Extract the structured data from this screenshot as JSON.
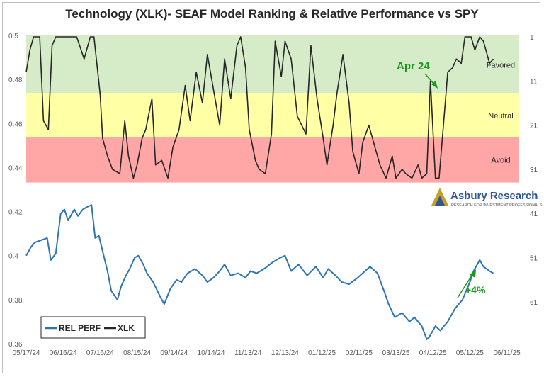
{
  "chart_data": {
    "type": "line",
    "title": "Technology (XLK)- SEAF Model Ranking & Relative Performance vs SPY",
    "x_tick_labels": [
      "05/17/24",
      "06/16/24",
      "07/16/24",
      "08/15/24",
      "09/14/24",
      "10/14/24",
      "11/13/24",
      "12/13/24",
      "01/12/25",
      "02/11/25",
      "03/13/25",
      "04/12/25",
      "05/12/25",
      "06/11/25"
    ],
    "xlim": [
      "05/17/24",
      "06/21/25"
    ],
    "left_axis": {
      "ylim": [
        0.36,
        0.5
      ],
      "ticks": [
        "0.5",
        "0.48",
        "0.46",
        "0.44",
        "0.42",
        "0.4",
        "0.38",
        "0.36"
      ]
    },
    "right_axis": {
      "reversed": true,
      "ticks": [
        "1",
        "11",
        "21",
        "31",
        "41",
        "51",
        "61"
      ]
    },
    "zones": [
      {
        "label": "Favored",
        "rank_range": [
          1,
          14
        ],
        "color": "#d6ecc9"
      },
      {
        "label": "Neutral",
        "rank_range": [
          14,
          24
        ],
        "color": "#ffffa6"
      },
      {
        "label": "Avoid",
        "rank_range": [
          24,
          34
        ],
        "color": "#ffa6a6"
      }
    ],
    "series": [
      {
        "name": "REL PERF",
        "axis": "left",
        "color": "#2e75b6",
        "x": [
          "05/17/24",
          "05/21/24",
          "05/24/24",
          "05/29/24",
          "06/03/24",
          "06/06/24",
          "06/10/24",
          "06/12/24",
          "06/14/24",
          "06/17/24",
          "06/20/24",
          "06/25/24",
          "06/28/24",
          "07/02/24",
          "07/05/24",
          "07/09/24",
          "07/12/24",
          "07/15/24",
          "07/18/24",
          "07/22/24",
          "07/25/24",
          "07/30/24",
          "08/02/24",
          "08/06/24",
          "08/09/24",
          "08/13/24",
          "08/16/24",
          "08/20/24",
          "08/23/24",
          "08/28/24",
          "09/03/24",
          "09/06/24",
          "09/11/24",
          "09/16/24",
          "09/20/24",
          "09/25/24",
          "10/01/24",
          "10/07/24",
          "10/11/24",
          "10/16/24",
          "10/21/24",
          "10/25/24",
          "10/30/24",
          "11/05/24",
          "11/11/24",
          "11/15/24",
          "11/20/24",
          "11/26/24",
          "12/03/24",
          "12/09/24",
          "12/13/24",
          "12/18/24",
          "12/24/24",
          "12/31/24",
          "01/07/25",
          "01/13/25",
          "01/17/25",
          "01/23/25",
          "01/28/25",
          "02/03/25",
          "02/10/25",
          "02/14/25",
          "02/20/25",
          "02/26/25",
          "03/04/25",
          "03/07/25",
          "03/12/25",
          "03/18/25",
          "03/24/25",
          "03/28/25",
          "04/03/25",
          "04/07/25",
          "04/09/25",
          "04/14/25",
          "04/18/25",
          "04/24/25",
          "04/30/25",
          "05/06/25",
          "05/12/25",
          "05/15/25",
          "05/20/25",
          "05/23/25",
          "05/28/25",
          "05/31/25"
        ],
        "values": [
          0.4,
          0.404,
          0.406,
          0.407,
          0.408,
          0.398,
          0.401,
          0.41,
          0.419,
          0.421,
          0.416,
          0.421,
          0.418,
          0.421,
          0.422,
          0.423,
          0.408,
          0.409,
          0.402,
          0.393,
          0.384,
          0.38,
          0.386,
          0.391,
          0.394,
          0.399,
          0.4,
          0.396,
          0.392,
          0.388,
          0.381,
          0.378,
          0.385,
          0.389,
          0.388,
          0.392,
          0.394,
          0.391,
          0.388,
          0.39,
          0.393,
          0.396,
          0.391,
          0.392,
          0.39,
          0.393,
          0.392,
          0.394,
          0.397,
          0.399,
          0.4,
          0.393,
          0.396,
          0.391,
          0.395,
          0.39,
          0.394,
          0.391,
          0.388,
          0.387,
          0.39,
          0.392,
          0.395,
          0.392,
          0.383,
          0.378,
          0.372,
          0.374,
          0.37,
          0.372,
          0.368,
          0.362,
          0.363,
          0.368,
          0.366,
          0.37,
          0.376,
          0.38,
          0.388,
          0.393,
          0.398,
          0.395,
          0.393,
          0.392
        ]
      },
      {
        "name": "XLK",
        "axis": "right",
        "color": "#262626",
        "x": [
          "05/17/24",
          "05/20/24",
          "05/23/24",
          "05/28/24",
          "05/31/24",
          "06/04/24",
          "06/07/24",
          "06/10/24",
          "06/13/24",
          "06/20/24",
          "06/27/24",
          "07/03/24",
          "07/08/24",
          "07/11/24",
          "07/16/24",
          "07/18/24",
          "07/22/24",
          "07/26/24",
          "08/01/24",
          "08/05/24",
          "08/08/24",
          "08/12/24",
          "08/15/24",
          "08/19/24",
          "08/22/24",
          "08/27/24",
          "08/30/24",
          "09/04/24",
          "09/09/24",
          "09/13/24",
          "09/18/24",
          "09/23/24",
          "09/27/24",
          "10/02/24",
          "10/07/24",
          "10/11/24",
          "10/16/24",
          "10/21/24",
          "10/25/24",
          "10/30/24",
          "11/04/24",
          "11/07/24",
          "11/11/24",
          "11/14/24",
          "11/19/24",
          "11/22/24",
          "11/27/24",
          "12/02/24",
          "12/05/24",
          "12/10/24",
          "12/13/24",
          "12/18/24",
          "12/23/24",
          "12/30/24",
          "01/03/25",
          "01/08/25",
          "01/13/25",
          "01/16/25",
          "01/21/25",
          "01/24/25",
          "01/29/25",
          "02/03/25",
          "02/06/25",
          "02/11/25",
          "02/14/25",
          "02/19/25",
          "02/24/25",
          "02/28/25",
          "03/05/25",
          "03/10/25",
          "03/13/25",
          "03/18/25",
          "03/21/25",
          "03/26/25",
          "03/31/25",
          "04/03/25",
          "04/07/25",
          "04/10/25",
          "04/14/25",
          "04/17/25",
          "04/22/25",
          "04/24/25",
          "04/28/25",
          "05/01/25",
          "05/05/25",
          "05/08/25",
          "05/13/25",
          "05/16/25",
          "05/20/25",
          "05/23/25",
          "05/28/25",
          "05/31/25"
        ],
        "values": [
          9,
          4,
          1,
          1,
          20,
          22,
          3,
          1,
          1,
          1,
          1,
          6,
          1,
          1,
          14,
          24,
          28,
          31,
          32,
          20,
          28,
          33,
          30,
          24,
          22,
          15,
          30,
          29,
          33,
          26,
          22,
          12,
          20,
          9,
          16,
          5,
          13,
          21,
          6,
          15,
          3,
          1,
          8,
          22,
          29,
          31,
          32,
          23,
          2,
          10,
          2,
          6,
          19,
          23,
          3,
          15,
          24,
          30,
          21,
          14,
          5,
          16,
          27,
          32,
          25,
          21,
          26,
          30,
          33,
          28,
          33,
          31,
          32,
          33,
          30,
          33,
          32,
          11,
          33,
          33,
          16,
          9,
          8,
          6,
          7,
          1,
          1,
          4,
          1,
          2,
          7,
          6
        ]
      }
    ],
    "legend": {
      "position": "bottom-left",
      "entries": [
        "REL PERF",
        "XLK"
      ]
    },
    "annotations": [
      {
        "text": "Apr 24",
        "color": "#179a17"
      },
      {
        "text": "+4%",
        "color": "#179a17"
      }
    ],
    "logo": {
      "name": "Asbury Research",
      "tagline": "RESEARCH FOR INVESTMENT PROFESSIONALS"
    },
    "grid": false
  }
}
